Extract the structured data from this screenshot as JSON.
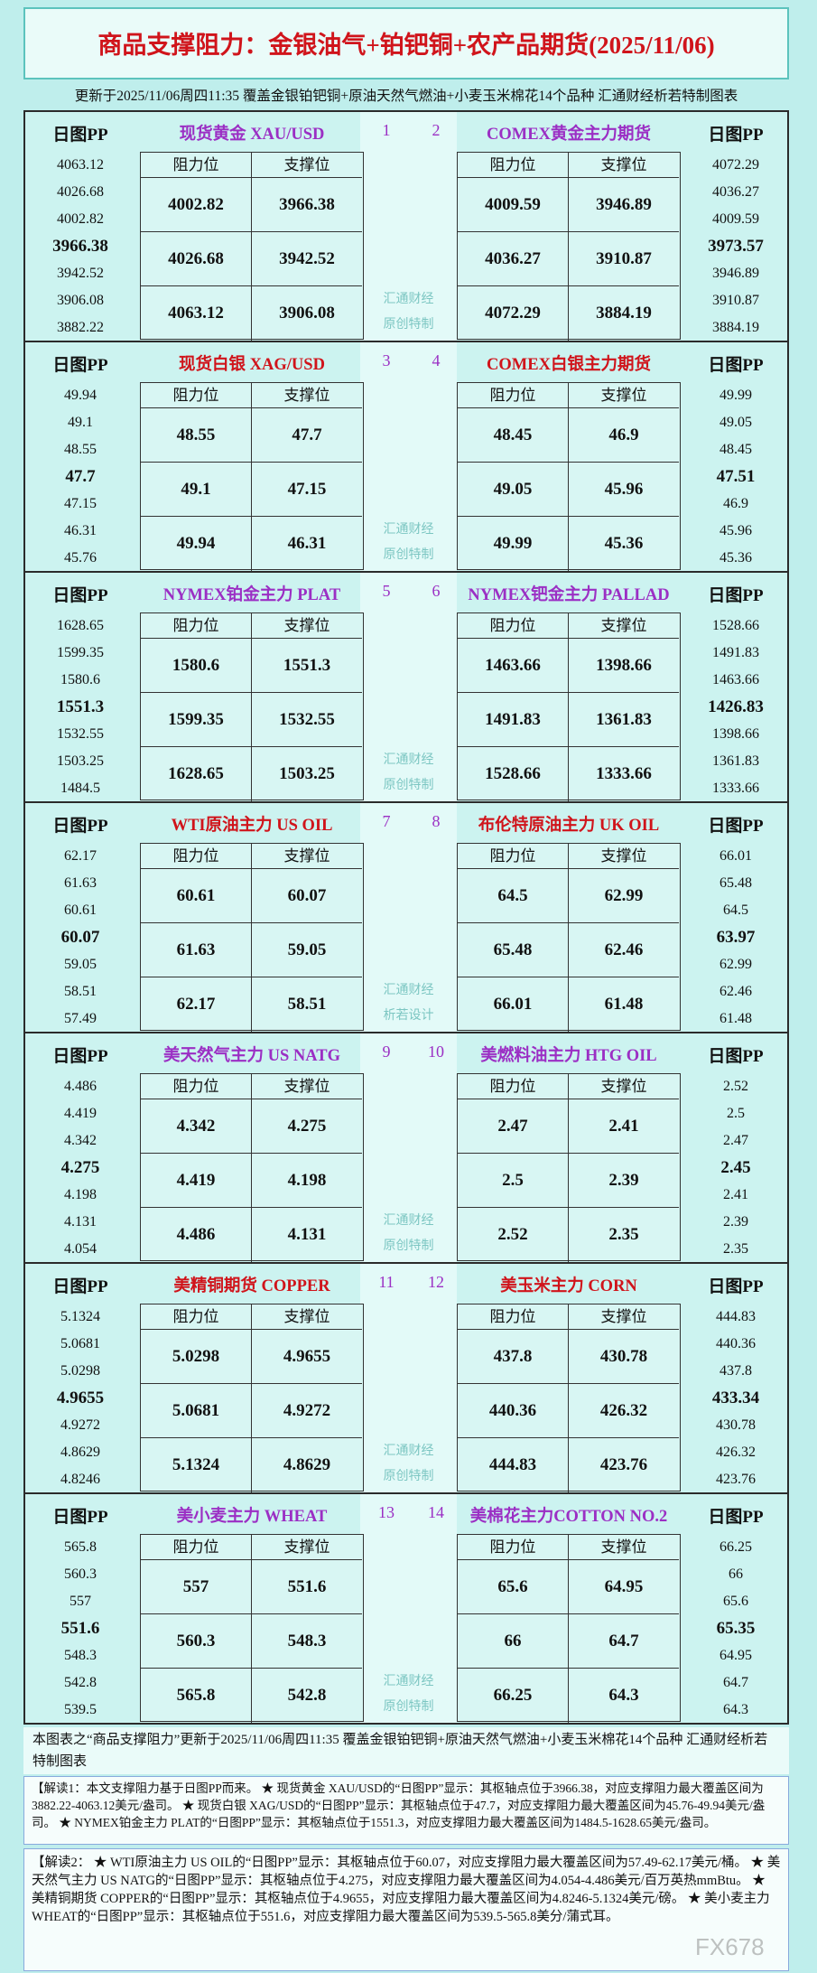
{
  "title": "商品支撑阻力：金银油气+铂钯铜+农产品期货(2025/11/06)",
  "subtitle": "更新于2025/11/06周四11:35  覆盖金银铂钯铜+原油天然气燃油+小麦玉米棉花14个品种  汇通财经析若特制图表",
  "labels": {
    "pp": "日图PP",
    "resistance": "阻力位",
    "support": "支撑位"
  },
  "sections": [
    {
      "watermark": [
        "汇通财经",
        "原创特制"
      ],
      "left": {
        "name": "现货黄金 XAU/USD",
        "number": "1",
        "color": "#9b2fc4",
        "pp": [
          4063.12,
          4026.68,
          4002.82,
          3966.38,
          3942.52,
          3906.08,
          3882.22
        ],
        "resistance": [
          4002.82,
          4026.68,
          4063.12
        ],
        "support": [
          3966.38,
          3942.52,
          3906.08
        ]
      },
      "right": {
        "name": "COMEX黄金主力期货",
        "number": "2",
        "color": "#9b2fc4",
        "pp": [
          4072.29,
          4036.27,
          4009.59,
          3973.57,
          3946.89,
          3910.87,
          3884.19
        ],
        "resistance": [
          4009.59,
          4036.27,
          4072.29
        ],
        "support": [
          3946.89,
          3910.87,
          3884.19
        ]
      }
    },
    {
      "watermark": [
        "汇通财经",
        "原创特制"
      ],
      "left": {
        "name": "现货白银 XAG/USD",
        "number": "3",
        "color": "#d0141b",
        "pp": [
          49.94,
          49.1,
          48.55,
          47.7,
          47.15,
          46.31,
          45.76
        ],
        "resistance": [
          48.55,
          49.1,
          49.94
        ],
        "support": [
          47.7,
          47.15,
          46.31
        ]
      },
      "right": {
        "name": "COMEX白银主力期货",
        "number": "4",
        "color": "#d0141b",
        "pp": [
          49.99,
          49.05,
          48.45,
          47.51,
          46.9,
          45.96,
          45.36
        ],
        "resistance": [
          48.45,
          49.05,
          49.99
        ],
        "support": [
          46.9,
          45.96,
          45.36
        ]
      }
    },
    {
      "watermark": [
        "汇通财经",
        "原创特制"
      ],
      "left": {
        "name": "NYMEX铂金主力 PLAT",
        "number": "5",
        "color": "#9b2fc4",
        "pp": [
          1628.65,
          1599.35,
          1580.6,
          1551.3,
          1532.55,
          1503.25,
          1484.5
        ],
        "resistance": [
          1580.6,
          1599.35,
          1628.65
        ],
        "support": [
          1551.3,
          1532.55,
          1503.25
        ]
      },
      "right": {
        "name": "NYMEX钯金主力 PALLAD",
        "number": "6",
        "color": "#9b2fc4",
        "pp": [
          1528.66,
          1491.83,
          1463.66,
          1426.83,
          1398.66,
          1361.83,
          1333.66
        ],
        "resistance": [
          1463.66,
          1491.83,
          1528.66
        ],
        "support": [
          1398.66,
          1361.83,
          1333.66
        ]
      }
    },
    {
      "watermark": [
        "汇通财经",
        "析若设计"
      ],
      "left": {
        "name": "WTI原油主力 US OIL",
        "number": "7",
        "color": "#d0141b",
        "pp": [
          62.17,
          61.63,
          60.61,
          60.07,
          59.05,
          58.51,
          57.49
        ],
        "resistance": [
          60.61,
          61.63,
          62.17
        ],
        "support": [
          60.07,
          59.05,
          58.51
        ]
      },
      "right": {
        "name": "布伦特原油主力 UK OIL",
        "number": "8",
        "color": "#d0141b",
        "pp": [
          66.01,
          65.48,
          64.5,
          63.97,
          62.99,
          62.46,
          61.48
        ],
        "resistance": [
          64.5,
          65.48,
          66.01
        ],
        "support": [
          62.99,
          62.46,
          61.48
        ]
      }
    },
    {
      "watermark": [
        "汇通财经",
        "原创特制"
      ],
      "left": {
        "name": "美天然气主力 US NATG",
        "number": "9",
        "color": "#9b2fc4",
        "pp": [
          4.486,
          4.419,
          4.342,
          4.275,
          4.198,
          4.131,
          4.054
        ],
        "resistance": [
          4.342,
          4.419,
          4.486
        ],
        "support": [
          4.275,
          4.198,
          4.131
        ]
      },
      "right": {
        "name": "美燃料油主力 HTG OIL",
        "number": "10",
        "color": "#9b2fc4",
        "pp": [
          2.52,
          2.5,
          2.47,
          2.45,
          2.41,
          2.39,
          2.35
        ],
        "resistance": [
          2.47,
          2.5,
          2.52
        ],
        "support": [
          2.41,
          2.39,
          2.35
        ]
      }
    },
    {
      "watermark": [
        "汇通财经",
        "原创特制"
      ],
      "left": {
        "name": "美精铜期货 COPPER",
        "number": "11",
        "color": "#d0141b",
        "pp": [
          5.1324,
          5.0681,
          5.0298,
          4.9655,
          4.9272,
          4.8629,
          4.8246
        ],
        "resistance": [
          5.0298,
          5.0681,
          5.1324
        ],
        "support": [
          4.9655,
          4.9272,
          4.8629
        ]
      },
      "right": {
        "name": "美玉米主力 CORN",
        "number": "12",
        "color": "#d0141b",
        "pp": [
          444.83,
          440.36,
          437.8,
          433.34,
          430.78,
          426.32,
          423.76
        ],
        "resistance": [
          437.8,
          440.36,
          444.83
        ],
        "support": [
          430.78,
          426.32,
          423.76
        ]
      }
    },
    {
      "watermark": [
        "汇通财经",
        "原创特制"
      ],
      "left": {
        "name": "美小麦主力 WHEAT",
        "number": "13",
        "color": "#9b2fc4",
        "pp": [
          565.8,
          560.3,
          557,
          551.6,
          548.3,
          542.8,
          539.5
        ],
        "resistance": [
          557,
          560.3,
          565.8
        ],
        "support": [
          551.6,
          548.3,
          542.8
        ]
      },
      "right": {
        "name": "美棉花主力COTTON NO.2",
        "number": "14",
        "color": "#9b2fc4",
        "pp": [
          66.25,
          66,
          65.6,
          65.35,
          64.95,
          64.7,
          64.3
        ],
        "resistance": [
          65.6,
          66,
          66.25
        ],
        "support": [
          64.95,
          64.7,
          64.3
        ]
      }
    }
  ],
  "footer": "本图表之“商品支撑阻力”更新于2025/11/06周四11:35 覆盖金银铂钯铜+原油天然气燃油+小麦玉米棉花14个品种 汇通财经析若特制图表",
  "notes": [
    "【解读1：本文支撑阻力基于日图PP而来。 ★ 现货黄金 XAU/USD的“日图PP”显示：其枢轴点位于3966.38，对应支撑阻力最大覆盖区间为3882.22-4063.12美元/盎司。 ★ 现货白银 XAG/USD的“日图PP”显示：其枢轴点位于47.7，对应支撑阻力最大覆盖区间为45.76-49.94美元/盎司。 ★ NYMEX铂金主力 PLAT的“日图PP”显示：其枢轴点位于1551.3，对应支撑阻力最大覆盖区间为1484.5-1628.65美元/盎司。",
    "【解读2： ★ WTI原油主力 US OIL的“日图PP”显示：其枢轴点位于60.07，对应支撑阻力最大覆盖区间为57.49-62.17美元/桶。 ★ 美天然气主力 US NATG的“日图PP”显示：其枢轴点位于4.275，对应支撑阻力最大覆盖区间为4.054-4.486美元/百万英热mmBtu。 ★ 美精铜期货 COPPER的“日图PP”显示：其枢轴点位于4.9655，对应支撑阻力最大覆盖区间为4.8246-5.1324美元/磅。 ★ 美小麦主力 WHEAT的“日图PP”显示：其枢轴点位于551.6，对应支撑阻力最大覆盖区间为539.5-565.8美分/蒲式耳。"
  ],
  "watermark": "FX678"
}
